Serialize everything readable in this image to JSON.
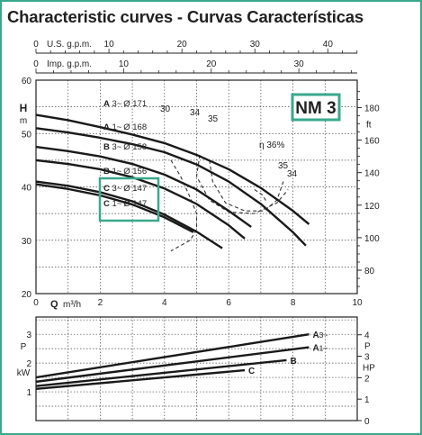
{
  "page": {
    "title": "Characteristic curves  -  Curvas Características",
    "model_badge": "NM 3",
    "accent_color": "#3aa88c"
  },
  "chart_data": [
    {
      "type": "line",
      "name_ref": "head-chart",
      "x_axes": {
        "bottom": {
          "label": "Q",
          "unit": "m³/h",
          "ticks": [
            0,
            2,
            4,
            6,
            8,
            10
          ],
          "range": [
            0,
            10
          ]
        },
        "top_us": {
          "label": "U.S. g.p.m.",
          "ticks": [
            0,
            10,
            20,
            30,
            40
          ]
        },
        "top_imp": {
          "label": "Imp. g.p.m.",
          "ticks": [
            0,
            10,
            20,
            30
          ]
        }
      },
      "y_axes": {
        "left": {
          "label": "H",
          "unit": "m",
          "ticks": [
            20,
            30,
            40,
            50,
            60
          ],
          "range": [
            20,
            60
          ]
        },
        "right": {
          "unit": "ft",
          "ticks": [
            80,
            100,
            120,
            140,
            160,
            180
          ]
        }
      },
      "grid": true,
      "series": [
        {
          "name": "A",
          "phase": "3~",
          "diameter": "Ø 171",
          "x": [
            0,
            1,
            2,
            3,
            4,
            5,
            6,
            7,
            8,
            8.5
          ],
          "y": [
            53.5,
            52.5,
            51.2,
            49.8,
            48.2,
            46,
            43.3,
            39.8,
            35.5,
            33
          ]
        },
        {
          "name": "A",
          "phase": "1~",
          "diameter": "Ø 168",
          "x": [
            0,
            1,
            2,
            3,
            4,
            5,
            6,
            7,
            8,
            8.4
          ],
          "y": [
            51,
            50.2,
            49.2,
            48,
            46.5,
            44.2,
            41,
            36.8,
            31.5,
            29
          ]
        },
        {
          "name": "B",
          "phase": "3~",
          "diameter": "Ø 158",
          "x": [
            0,
            1,
            2,
            3,
            4,
            5,
            6,
            6.7
          ],
          "y": [
            47.5,
            46.7,
            45.7,
            44.3,
            42.3,
            39.5,
            35.5,
            32.5
          ]
        },
        {
          "name": "B",
          "phase": "1~",
          "diameter": "Ø 156",
          "x": [
            0,
            1,
            2,
            3,
            4,
            5,
            6,
            6.5
          ],
          "y": [
            45,
            44.3,
            43.3,
            41.8,
            39.7,
            36.8,
            32.8,
            30.3
          ]
        },
        {
          "name": "C",
          "phase": "3~",
          "diameter": "Ø 147",
          "x": [
            0,
            1,
            2,
            3,
            4,
            5,
            5.8
          ],
          "y": [
            41,
            40.2,
            39,
            37.3,
            34.8,
            31.6,
            28.5
          ]
        },
        {
          "name": "C",
          "phase": "1~",
          "diameter": "Ø 147",
          "x": [
            0,
            1,
            2,
            3,
            4,
            4.9
          ],
          "y": [
            40.5,
            39.6,
            38.4,
            36.7,
            34.3,
            31.5
          ]
        }
      ],
      "efficiency_curves": [
        {
          "label": "30",
          "x": [
            4.2,
            4.5,
            4.8,
            5,
            5,
            4.8,
            4.2
          ],
          "y": [
            45,
            42,
            38,
            35,
            32,
            30,
            28
          ]
        },
        {
          "label": "34",
          "x": [
            5.1,
            5,
            5.4,
            6,
            6.8,
            7.5,
            7.85
          ],
          "y": [
            46,
            42,
            37.5,
            35.3,
            35,
            37,
            39.5
          ]
        },
        {
          "label": "35",
          "x": [
            5.4,
            5.5,
            5.9,
            6.5,
            7.1,
            7.5,
            7.7
          ],
          "y": [
            45,
            41,
            37,
            35.5,
            35.5,
            37.5,
            41
          ]
        },
        {
          "label": "η 36%",
          "x": [
            6.8,
            7.05,
            7.2
          ],
          "y": [
            39.5,
            38.5,
            37
          ]
        }
      ],
      "efficiency_labels": [
        "30",
        "34",
        "35",
        "η 36%",
        "35",
        "34"
      ]
    },
    {
      "type": "line",
      "name_ref": "power-chart",
      "x_axes": {
        "bottom": {
          "ticks": [
            0,
            2,
            4,
            6,
            8,
            10
          ],
          "range": [
            0,
            10
          ]
        }
      },
      "y_axes": {
        "left": {
          "label": "P",
          "unit": "kW",
          "ticks": [
            1,
            2,
            3
          ],
          "range": [
            0,
            3.6
          ]
        },
        "right": {
          "label": "P",
          "unit": "HP",
          "ticks": [
            0,
            1,
            2,
            3,
            4
          ],
          "range": [
            0,
            4.8
          ]
        }
      },
      "grid": true,
      "series": [
        {
          "name": "A",
          "phase": "3~",
          "x": [
            0,
            8.5
          ],
          "y": [
            1.5,
            3.0
          ]
        },
        {
          "name": "A",
          "phase": "1~",
          "x": [
            0,
            8.5
          ],
          "y": [
            1.35,
            2.55
          ]
        },
        {
          "name": "B",
          "x": [
            0,
            7.8
          ],
          "y": [
            1.2,
            2.1
          ]
        },
        {
          "name": "C",
          "x": [
            0,
            6.5
          ],
          "y": [
            1.1,
            1.75
          ]
        }
      ],
      "series_labels": {
        "A3": "A",
        "A3_phase": "3~",
        "A1": "A",
        "A1_phase": "1~",
        "B": "B",
        "C": "C"
      }
    }
  ]
}
